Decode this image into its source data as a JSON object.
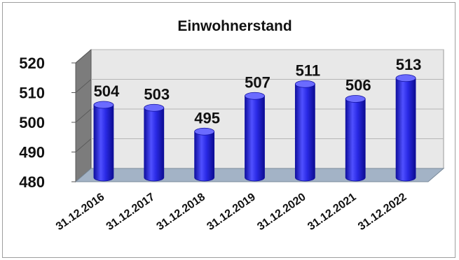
{
  "chart_data": {
    "type": "bar",
    "title": "Einwohnerstand",
    "xlabel": "",
    "ylabel": "",
    "categories": [
      "31.12.2016",
      "31.12.2017",
      "31.12.2018",
      "31.12.2019",
      "31.12.2020",
      "31.12.2021",
      "31.12.2022"
    ],
    "values": [
      504,
      503,
      495,
      507,
      511,
      506,
      513
    ],
    "data_labels": [
      "504",
      "503",
      "495",
      "507",
      "511",
      "506",
      "513"
    ],
    "ylim": [
      480,
      520
    ],
    "yticks": [
      "480",
      "490",
      "500",
      "510",
      "520"
    ],
    "style": "3d-cylinder",
    "grid": true,
    "legend": "none",
    "colors": {
      "bar": "#2a2ae6",
      "bar_dark": "#1010a0",
      "bar_light": "#6b6bff",
      "wall": "#e8e8e8",
      "side_wall": "#7c7c7c",
      "floor": "#a3b3c6",
      "grid": "#b5b5b5"
    }
  }
}
